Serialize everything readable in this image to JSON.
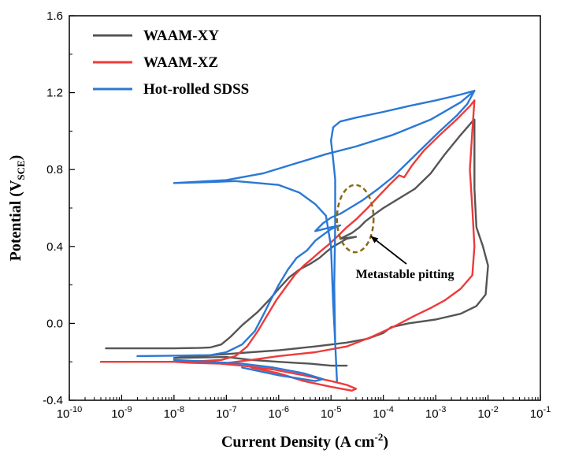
{
  "chart_data": {
    "type": "line",
    "title": "",
    "xlabel": {
      "main": "Current Density (A cm",
      "sup": "-2",
      "end": ")"
    },
    "ylabel": {
      "main": "Potential (V",
      "sub": "SCE",
      "end": ")"
    },
    "x_scale": "log",
    "xlim": [
      1e-10,
      0.1
    ],
    "ylim": [
      -0.4,
      1.6
    ],
    "x_ticks": [
      {
        "value": 1e-10,
        "base": "10",
        "exp": "-10"
      },
      {
        "value": 1e-09,
        "base": "10",
        "exp": "-9"
      },
      {
        "value": 1e-08,
        "base": "10",
        "exp": "-8"
      },
      {
        "value": 1e-07,
        "base": "10",
        "exp": "-7"
      },
      {
        "value": 1e-06,
        "base": "10",
        "exp": "-6"
      },
      {
        "value": 1e-05,
        "base": "10",
        "exp": "-5"
      },
      {
        "value": 0.0001,
        "base": "10",
        "exp": "-4"
      },
      {
        "value": 0.001,
        "base": "10",
        "exp": "-3"
      },
      {
        "value": 0.01,
        "base": "10",
        "exp": "-2"
      },
      {
        "value": 0.1,
        "base": "10",
        "exp": "-1"
      }
    ],
    "y_ticks": [
      {
        "value": -0.4,
        "label": "-0.4"
      },
      {
        "value": 0.0,
        "label": "0.0"
      },
      {
        "value": 0.4,
        "label": "0.4"
      },
      {
        "value": 0.8,
        "label": "0.8"
      },
      {
        "value": 1.2,
        "label": "1.2"
      },
      {
        "value": 1.6,
        "label": "1.6"
      }
    ],
    "grid": false,
    "legend_position": "top-left",
    "series": [
      {
        "name": "WAAM-XY",
        "color": "#555555",
        "points": [
          [
            5e-10,
            -0.13
          ],
          [
            2e-09,
            -0.13
          ],
          [
            1e-08,
            -0.13
          ],
          [
            3e-08,
            -0.128
          ],
          [
            5e-08,
            -0.125
          ],
          [
            8e-08,
            -0.11
          ],
          [
            1.2e-07,
            -0.07
          ],
          [
            2e-07,
            -0.01
          ],
          [
            4e-07,
            0.06
          ],
          [
            7e-07,
            0.13
          ],
          [
            1e-06,
            0.18
          ],
          [
            1.6e-06,
            0.24
          ],
          [
            2.5e-06,
            0.28
          ],
          [
            4e-06,
            0.31
          ],
          [
            6e-06,
            0.34
          ],
          [
            8e-06,
            0.37
          ],
          [
            1.1e-05,
            0.4
          ],
          [
            1.5e-05,
            0.42
          ],
          [
            2e-05,
            0.44
          ],
          [
            3e-05,
            0.45
          ],
          [
            1.5e-05,
            0.44
          ],
          [
            2.5e-05,
            0.47
          ],
          [
            3.5e-05,
            0.5
          ],
          [
            4.5e-05,
            0.53
          ],
          [
            7e-05,
            0.57
          ],
          [
            0.0001,
            0.6
          ],
          [
            0.0002,
            0.65
          ],
          [
            0.0004,
            0.7
          ],
          [
            0.0008,
            0.78
          ],
          [
            0.0015,
            0.88
          ],
          [
            0.003,
            0.98
          ],
          [
            0.005,
            1.05
          ],
          [
            0.0055,
            1.06
          ],
          [
            0.0055,
            0.7
          ],
          [
            0.006,
            0.5
          ],
          [
            0.008,
            0.4
          ],
          [
            0.01,
            0.3
          ],
          [
            0.009,
            0.15
          ],
          [
            0.006,
            0.09
          ],
          [
            0.003,
            0.05
          ],
          [
            0.001,
            0.02
          ],
          [
            0.0003,
            0.0
          ],
          [
            0.00014,
            -0.02
          ],
          [
            0.0001,
            -0.05
          ],
          [
            5e-05,
            -0.08
          ],
          [
            2e-05,
            -0.1
          ],
          [
            5e-06,
            -0.12
          ],
          [
            1e-06,
            -0.14
          ],
          [
            3e-07,
            -0.15
          ],
          [
            1e-07,
            -0.16
          ],
          [
            3e-08,
            -0.17
          ],
          [
            1e-08,
            -0.18
          ],
          [
            1e-07,
            -0.175
          ],
          [
            3e-07,
            -0.19
          ],
          [
            1e-06,
            -0.2
          ],
          [
            4e-06,
            -0.21
          ],
          [
            1e-05,
            -0.22
          ],
          [
            2e-05,
            -0.22
          ]
        ]
      },
      {
        "name": "WAAM-XZ",
        "color": "#ee3a3a",
        "points": [
          [
            4e-10,
            -0.2
          ],
          [
            2e-09,
            -0.2
          ],
          [
            1e-08,
            -0.2
          ],
          [
            4e-08,
            -0.195
          ],
          [
            8e-08,
            -0.19
          ],
          [
            1.5e-07,
            -0.17
          ],
          [
            2.5e-07,
            -0.12
          ],
          [
            4e-07,
            -0.04
          ],
          [
            6e-07,
            0.04
          ],
          [
            9e-07,
            0.12
          ],
          [
            1.3e-06,
            0.18
          ],
          [
            2e-06,
            0.25
          ],
          [
            3e-06,
            0.3
          ],
          [
            4.5e-06,
            0.34
          ],
          [
            6e-06,
            0.37
          ],
          [
            9e-06,
            0.41
          ],
          [
            1.3e-05,
            0.45
          ],
          [
            2e-05,
            0.5
          ],
          [
            3e-05,
            0.54
          ],
          [
            5e-05,
            0.6
          ],
          [
            8e-05,
            0.66
          ],
          [
            0.00013,
            0.72
          ],
          [
            0.0002,
            0.77
          ],
          [
            0.00025,
            0.76
          ],
          [
            0.00035,
            0.82
          ],
          [
            0.0006,
            0.9
          ],
          [
            0.0012,
            0.98
          ],
          [
            0.0025,
            1.06
          ],
          [
            0.0045,
            1.13
          ],
          [
            0.0055,
            1.16
          ],
          [
            0.005,
            1.0
          ],
          [
            0.0045,
            0.8
          ],
          [
            0.005,
            0.6
          ],
          [
            0.0055,
            0.4
          ],
          [
            0.005,
            0.25
          ],
          [
            0.003,
            0.18
          ],
          [
            0.0015,
            0.12
          ],
          [
            0.0008,
            0.08
          ],
          [
            0.0004,
            0.04
          ],
          [
            0.00015,
            -0.02
          ],
          [
            6e-05,
            -0.07
          ],
          [
            2e-05,
            -0.12
          ],
          [
            5e-06,
            -0.15
          ],
          [
            1e-06,
            -0.17
          ],
          [
            3e-07,
            -0.19
          ],
          [
            8e-08,
            -0.21
          ],
          [
            2e-08,
            -0.205
          ],
          [
            1e-08,
            -0.2
          ],
          [
            5e-08,
            -0.205
          ],
          [
            2e-07,
            -0.22
          ],
          [
            8e-07,
            -0.24
          ],
          [
            3e-06,
            -0.27
          ],
          [
            1e-05,
            -0.3
          ],
          [
            2e-05,
            -0.32
          ],
          [
            3e-05,
            -0.34
          ],
          [
            2.5e-05,
            -0.35
          ],
          [
            1e-05,
            -0.33
          ],
          [
            3e-06,
            -0.3
          ],
          [
            1e-06,
            -0.26
          ],
          [
            3e-07,
            -0.23
          ]
        ]
      },
      {
        "name": "Hot-rolled SDSS",
        "color": "#2a78d6",
        "points": [
          [
            2e-09,
            -0.17
          ],
          [
            1e-08,
            -0.168
          ],
          [
            5e-08,
            -0.165
          ],
          [
            1e-07,
            -0.15
          ],
          [
            2e-07,
            -0.11
          ],
          [
            3.5e-07,
            -0.04
          ],
          [
            5e-07,
            0.04
          ],
          [
            7e-07,
            0.12
          ],
          [
            1e-06,
            0.2
          ],
          [
            1.5e-06,
            0.28
          ],
          [
            2.2e-06,
            0.34
          ],
          [
            3.5e-06,
            0.38
          ],
          [
            5e-06,
            0.43
          ],
          [
            7e-06,
            0.46
          ],
          [
            1e-05,
            0.49
          ],
          [
            1.5e-05,
            0.51
          ],
          [
            1e-05,
            0.5
          ],
          [
            5e-06,
            0.48
          ],
          [
            7e-06,
            0.52
          ],
          [
            1e-05,
            0.55
          ],
          [
            1.5e-05,
            0.57
          ],
          [
            2e-05,
            0.59
          ],
          [
            4e-05,
            0.64
          ],
          [
            8e-05,
            0.7
          ],
          [
            0.00015,
            0.76
          ],
          [
            0.0003,
            0.84
          ],
          [
            0.0006,
            0.92
          ],
          [
            0.0012,
            1.0
          ],
          [
            0.0025,
            1.08
          ],
          [
            0.004,
            1.14
          ],
          [
            0.0055,
            1.21
          ],
          [
            0.003,
            1.19
          ],
          [
            0.001,
            1.16
          ],
          [
            0.0003,
            1.13
          ],
          [
            0.0001,
            1.1
          ],
          [
            3e-05,
            1.07
          ],
          [
            1.5e-05,
            1.05
          ],
          [
            1.1e-05,
            1.02
          ],
          [
            1e-05,
            0.95
          ],
          [
            1.1e-05,
            0.85
          ],
          [
            1.2e-05,
            0.75
          ],
          [
            1.2e-05,
            0.5
          ],
          [
            1.15e-05,
            0.2
          ],
          [
            1.2e-05,
            -0.1
          ],
          [
            1.3e-05,
            -0.3
          ],
          [
            1.2e-05,
            -0.1
          ],
          [
            1.1e-05,
            0.1
          ],
          [
            1e-05,
            0.4
          ],
          [
            8e-06,
            0.56
          ],
          [
            5e-06,
            0.62
          ],
          [
            2.5e-06,
            0.68
          ],
          [
            1e-06,
            0.72
          ],
          [
            4e-07,
            0.73
          ],
          [
            1.5e-07,
            0.74
          ],
          [
            5e-08,
            0.735
          ],
          [
            1e-08,
            0.73
          ],
          [
            1e-07,
            0.745
          ],
          [
            5e-07,
            0.78
          ],
          [
            2e-06,
            0.83
          ],
          [
            8e-06,
            0.88
          ],
          [
            3e-05,
            0.92
          ],
          [
            0.00015,
            0.98
          ],
          [
            0.0008,
            1.06
          ],
          [
            0.003,
            1.15
          ],
          [
            0.0055,
            1.21
          ]
        ]
      },
      {
        "name": "",
        "color": "#2a78d6",
        "points": [
          [
            1e-08,
            -0.19
          ],
          [
            5e-08,
            -0.2
          ],
          [
            2e-07,
            -0.21
          ],
          [
            8e-07,
            -0.23
          ],
          [
            3e-06,
            -0.26
          ],
          [
            7e-06,
            -0.29
          ],
          [
            5e-06,
            -0.3
          ],
          [
            1e-06,
            -0.27
          ],
          [
            2e-07,
            -0.23
          ]
        ]
      }
    ],
    "annotation": {
      "text": "Metastable pitting",
      "ellipse": {
        "x_min": 1.3e-05,
        "x_max": 6.5e-05,
        "y_min": 0.37,
        "y_max": 0.72,
        "color": "#8b6914"
      },
      "arrow_target": [
        5e-05,
        0.47
      ]
    }
  }
}
